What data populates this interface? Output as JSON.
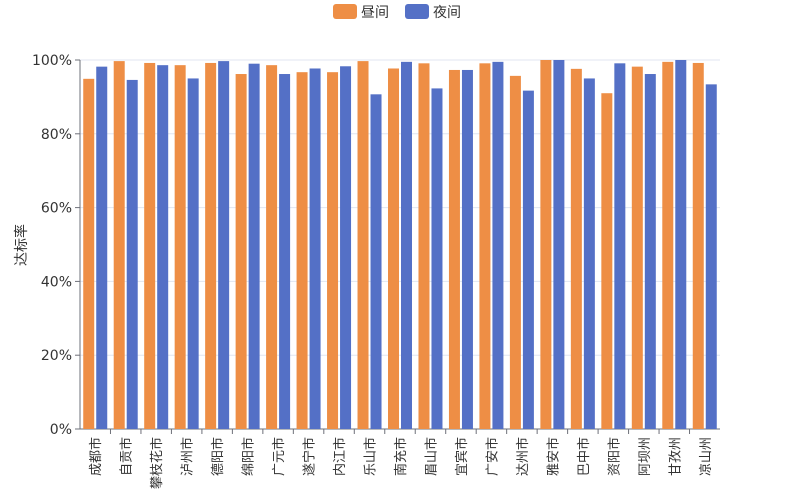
{
  "chart_data": {
    "type": "bar",
    "title": "",
    "xlabel": "",
    "ylabel": "达标率",
    "ylim": [
      0,
      100
    ],
    "yticks": [
      "0%",
      "20%",
      "40%",
      "60%",
      "80%",
      "100%"
    ],
    "legend_position": "top-center",
    "categories": [
      "成都市",
      "自贡市",
      "攀枝花市",
      "泸州市",
      "德阳市",
      "绵阳市",
      "广元市",
      "遂宁市",
      "内江市",
      "乐山市",
      "南充市",
      "眉山市",
      "宜宾市",
      "广安市",
      "达州市",
      "雅安市",
      "巴中市",
      "资阳市",
      "阿坝州",
      "甘孜州",
      "凉山州"
    ],
    "series": [
      {
        "name": "昼间",
        "color": "#ee8e45",
        "values": [
          94.9,
          99.7,
          99.2,
          98.6,
          99.2,
          96.2,
          98.6,
          96.7,
          96.7,
          99.7,
          97.7,
          99.1,
          97.3,
          99.1,
          95.7,
          100,
          97.6,
          91.0,
          98.2,
          99.5,
          99.2
        ]
      },
      {
        "name": "夜间",
        "color": "#5470c6",
        "values": [
          98.2,
          94.6,
          98.6,
          95.0,
          99.7,
          99.0,
          96.2,
          97.7,
          98.3,
          90.7,
          99.5,
          92.3,
          97.3,
          99.5,
          91.7,
          100,
          95.0,
          99.1,
          96.2,
          100,
          93.4
        ]
      }
    ]
  }
}
